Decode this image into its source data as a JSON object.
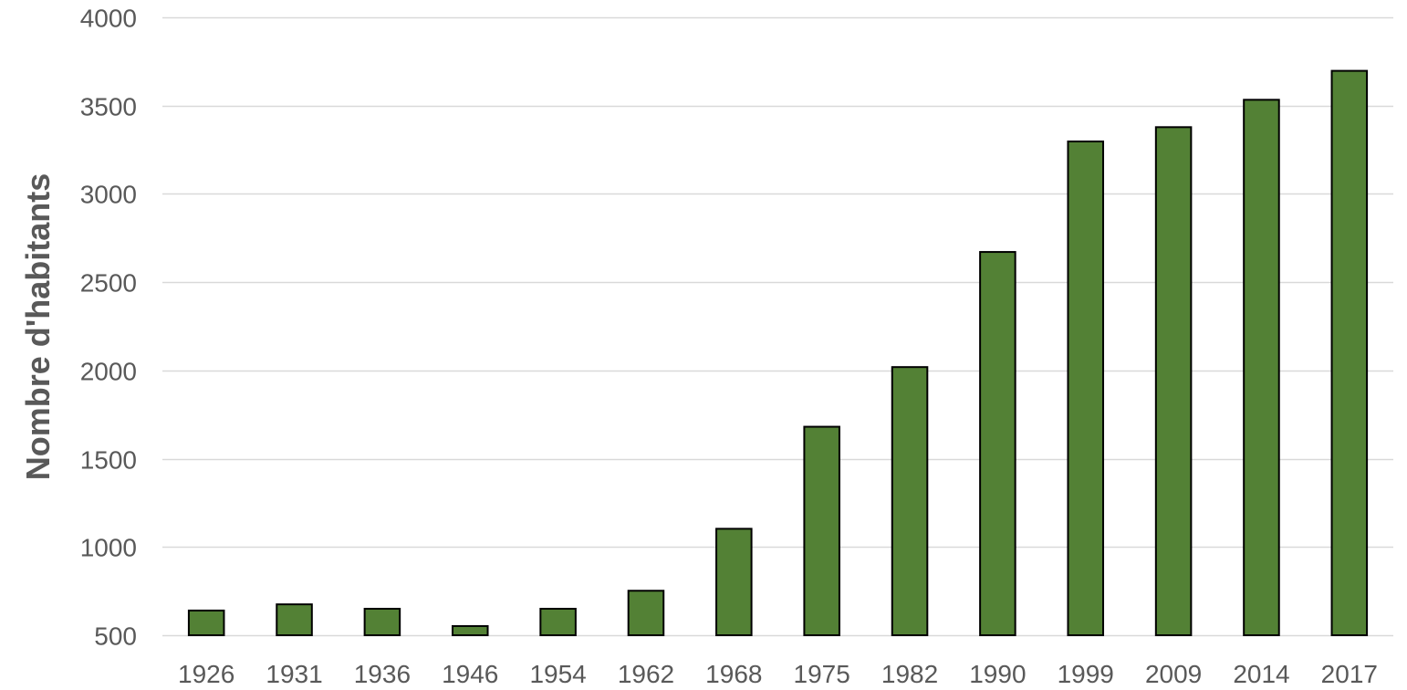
{
  "chart_data": {
    "type": "bar",
    "title": "",
    "xlabel": "",
    "ylabel": "Nombre d'habitants",
    "categories": [
      "1926",
      "1931",
      "1936",
      "1946",
      "1954",
      "1962",
      "1968",
      "1975",
      "1982",
      "1990",
      "1999",
      "2009",
      "2014",
      "2017"
    ],
    "values": [
      640,
      675,
      650,
      552,
      650,
      752,
      1103,
      1681,
      2019,
      2671,
      3297,
      3378,
      3533,
      3697
    ],
    "ylim": [
      500,
      4000
    ],
    "yticks": [
      "500",
      "1000",
      "1500",
      "2000",
      "2500",
      "3000",
      "3500",
      "4000"
    ],
    "grid": true,
    "legend": "none",
    "colors": {
      "bar_fill": "#538135",
      "bar_stroke": "#000000",
      "grid": "#d9d9d9",
      "text": "#595959"
    }
  }
}
